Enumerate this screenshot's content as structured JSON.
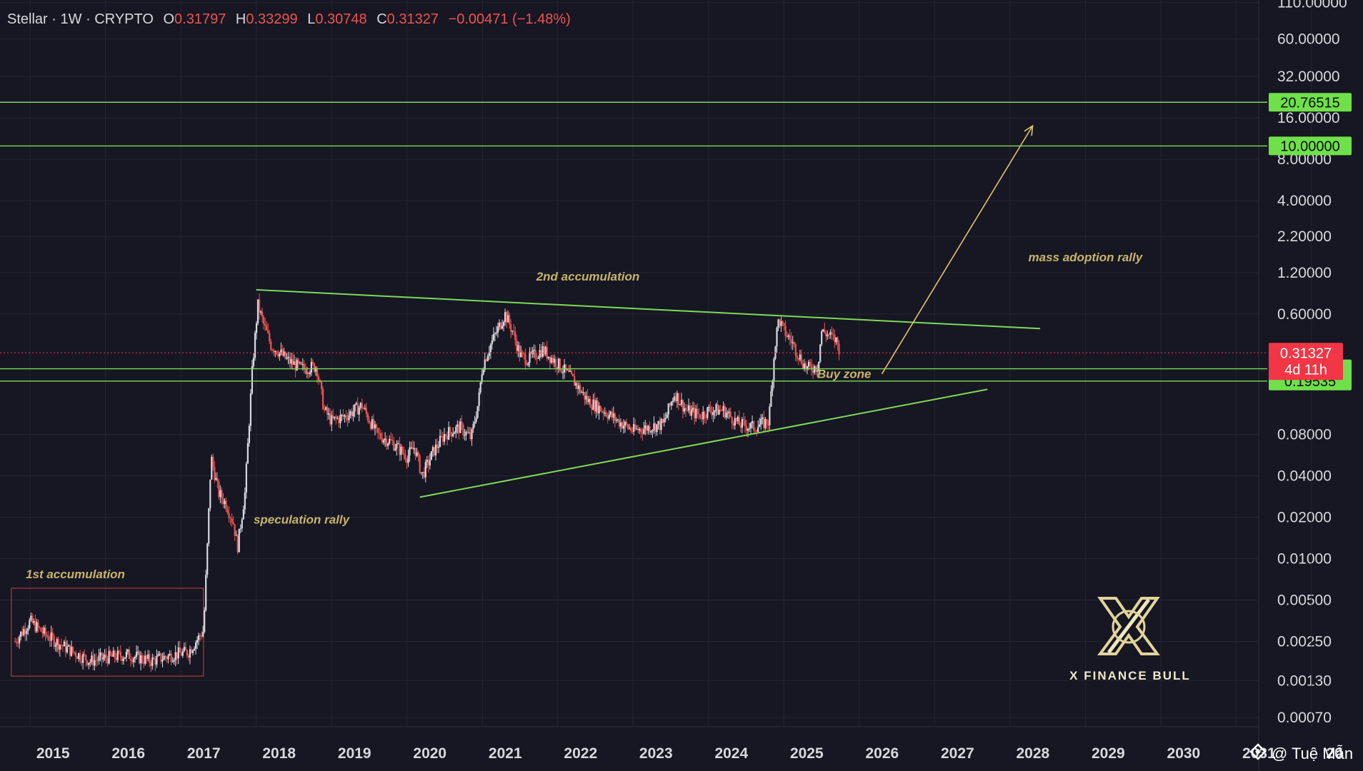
{
  "header": {
    "symbol": "Stellar",
    "sep1": "·",
    "interval": "1W",
    "sep2": "·",
    "exchange": "CRYPTO",
    "o_label": "O",
    "o_value": "0.31797",
    "h_label": "H",
    "h_value": "0.33299",
    "l_label": "L",
    "l_value": "0.30748",
    "c_label": "C",
    "c_value": "0.31327",
    "change": "−0.00471 (−1.48%)"
  },
  "colors": {
    "background": "#161722",
    "text": "#d7d9e0",
    "up": "#d7d9e0",
    "down": "#ef5350",
    "line_green": "#7ed957",
    "badge_green": "#6fe04a",
    "badge_red": "#f23645",
    "annotation": "#c9b36a",
    "arrow": "#e2c46a",
    "box": "#b33a3a"
  },
  "chart_data": {
    "type": "candlestick",
    "scale": "log",
    "x_range": [
      2014.6,
      2032.2
    ],
    "y_range": [
      0.0006,
      115
    ],
    "x_ticks": [
      "2015",
      "2016",
      "2017",
      "2018",
      "2019",
      "2020",
      "2021",
      "2022",
      "2023",
      "2024",
      "2025",
      "2026",
      "2027",
      "2028",
      "2029",
      "2030",
      "2031",
      "20"
    ],
    "y_ticks": [
      "110.00000",
      "60.00000",
      "32.00000",
      "16.00000",
      "8.00000",
      "4.00000",
      "2.20000",
      "1.20000",
      "0.60000",
      "0.08000",
      "0.04000",
      "0.02000",
      "0.01000",
      "0.00500",
      "0.00250",
      "0.00130",
      "0.00070"
    ],
    "y_tick_values": [
      110,
      60,
      32,
      16,
      8,
      4,
      2.2,
      1.2,
      0.6,
      0.08,
      0.04,
      0.02,
      0.01,
      0.005,
      0.0025,
      0.0013,
      0.0007
    ],
    "price_path": [
      [
        2014.8,
        0.0025
      ],
      [
        2015.0,
        0.0035
      ],
      [
        2015.2,
        0.0028
      ],
      [
        2015.5,
        0.0022
      ],
      [
        2015.8,
        0.0018
      ],
      [
        2016.0,
        0.0019
      ],
      [
        2016.3,
        0.002
      ],
      [
        2016.6,
        0.0018
      ],
      [
        2016.9,
        0.002
      ],
      [
        2017.1,
        0.0021
      ],
      [
        2017.3,
        0.003
      ],
      [
        2017.35,
        0.012
      ],
      [
        2017.4,
        0.055
      ],
      [
        2017.5,
        0.03
      ],
      [
        2017.6,
        0.025
      ],
      [
        2017.7,
        0.018
      ],
      [
        2017.75,
        0.012
      ],
      [
        2017.85,
        0.03
      ],
      [
        2017.95,
        0.25
      ],
      [
        2018.02,
        0.7
      ],
      [
        2018.1,
        0.5
      ],
      [
        2018.2,
        0.35
      ],
      [
        2018.3,
        0.32
      ],
      [
        2018.4,
        0.28
      ],
      [
        2018.6,
        0.24
      ],
      [
        2018.8,
        0.25
      ],
      [
        2018.9,
        0.12
      ],
      [
        2019.0,
        0.1
      ],
      [
        2019.2,
        0.11
      ],
      [
        2019.4,
        0.13
      ],
      [
        2019.6,
        0.08
      ],
      [
        2019.8,
        0.07
      ],
      [
        2020.0,
        0.055
      ],
      [
        2020.1,
        0.065
      ],
      [
        2020.2,
        0.04
      ],
      [
        2020.35,
        0.06
      ],
      [
        2020.5,
        0.08
      ],
      [
        2020.7,
        0.09
      ],
      [
        2020.85,
        0.075
      ],
      [
        2020.95,
        0.14
      ],
      [
        2021.0,
        0.25
      ],
      [
        2021.1,
        0.35
      ],
      [
        2021.3,
        0.6
      ],
      [
        2021.4,
        0.45
      ],
      [
        2021.5,
        0.3
      ],
      [
        2021.6,
        0.28
      ],
      [
        2021.8,
        0.33
      ],
      [
        2022.0,
        0.26
      ],
      [
        2022.2,
        0.2
      ],
      [
        2022.4,
        0.14
      ],
      [
        2022.6,
        0.12
      ],
      [
        2022.8,
        0.1
      ],
      [
        2023.0,
        0.085
      ],
      [
        2023.2,
        0.09
      ],
      [
        2023.4,
        0.095
      ],
      [
        2023.55,
        0.16
      ],
      [
        2023.7,
        0.12
      ],
      [
        2023.9,
        0.11
      ],
      [
        2024.0,
        0.12
      ],
      [
        2024.2,
        0.12
      ],
      [
        2024.4,
        0.095
      ],
      [
        2024.6,
        0.09
      ],
      [
        2024.8,
        0.1
      ],
      [
        2024.88,
        0.35
      ],
      [
        2024.93,
        0.55
      ],
      [
        2025.0,
        0.45
      ],
      [
        2025.1,
        0.38
      ],
      [
        2025.2,
        0.3
      ],
      [
        2025.3,
        0.24
      ],
      [
        2025.45,
        0.25
      ],
      [
        2025.5,
        0.45
      ],
      [
        2025.6,
        0.42
      ],
      [
        2025.7,
        0.38
      ],
      [
        2025.75,
        0.31327
      ]
    ],
    "horizontal_levels": [
      {
        "value": 20.76515,
        "label": "20.76515"
      },
      {
        "value": 10.0,
        "label": "10.00000"
      },
      {
        "value": 0.23998,
        "label": "0.23998"
      },
      {
        "value": 0.19535,
        "label": "0.19535"
      }
    ],
    "current_price": {
      "value": 0.31327,
      "label": "0.31327",
      "countdown": "4d 11h"
    },
    "trendlines": [
      {
        "name": "resistance",
        "from": [
          2018.0,
          0.9
        ],
        "to": [
          2028.4,
          0.47
        ]
      },
      {
        "name": "support",
        "from": [
          2020.17,
          0.028
        ],
        "to": [
          2027.7,
          0.17
        ]
      }
    ],
    "arrow": {
      "from": [
        2026.3,
        0.22
      ],
      "to": [
        2028.3,
        14.0
      ]
    },
    "accumulation_box": {
      "x": [
        2014.75,
        2017.3
      ],
      "y": [
        0.0014,
        0.0061
      ]
    },
    "annotations": [
      {
        "text": "1st accumulation",
        "at": [
          2015.6,
          0.0072
        ]
      },
      {
        "text": "speculation rally",
        "at": [
          2018.6,
          0.018
        ]
      },
      {
        "text": "2nd accumulation",
        "at": [
          2022.4,
          1.05
        ]
      },
      {
        "text": "Buy zone",
        "at": [
          2025.8,
          0.205
        ]
      },
      {
        "text": "mass adoption rally",
        "at": [
          2029.0,
          1.45
        ]
      }
    ]
  },
  "watermark": {
    "brand": "X FINANCE BULL",
    "credit": "@ Tuệ Mẫn"
  }
}
